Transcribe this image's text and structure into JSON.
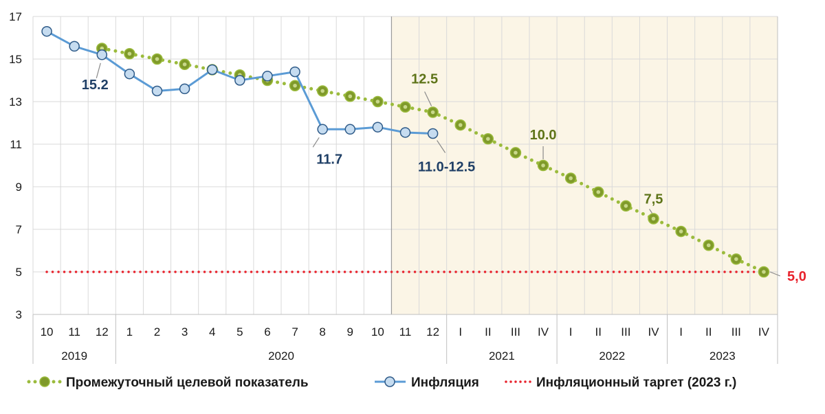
{
  "chart_data": {
    "type": "line",
    "colors": {
      "target_line": "#9bbb3c",
      "target_marker_outer": "#7f9a2a",
      "target_marker_inner": "#5e7418",
      "inflation_line": "#5b9bd5",
      "inflation_marker_fill": "#c6dcf0",
      "inflation_marker_stroke": "#2e5a88",
      "goal_line": "#e8222c",
      "forecast_shade": "#fbf5e6",
      "grid": "#d9d9d9"
    },
    "y_ticks": [
      "3",
      "5",
      "7",
      "9",
      "11",
      "13",
      "15",
      "17"
    ],
    "ylim": [
      3,
      17
    ],
    "grid": true,
    "categories": [
      "10",
      "11",
      "12",
      "1",
      "2",
      "3",
      "4",
      "5",
      "6",
      "7",
      "8",
      "9",
      "10",
      "11",
      "12",
      "I",
      "II",
      "III",
      "IV",
      "I",
      "II",
      "III",
      "IV",
      "I",
      "II",
      "III",
      "IV"
    ],
    "year_groups": [
      {
        "label": "2019",
        "start": 0,
        "end": 2
      },
      {
        "label": "2020",
        "start": 3,
        "end": 14
      },
      {
        "label": "2021",
        "start": 15,
        "end": 18
      },
      {
        "label": "2022",
        "start": 19,
        "end": 22
      },
      {
        "label": "2023",
        "start": 23,
        "end": 26
      }
    ],
    "forecast_start_index": 12.5,
    "series": [
      {
        "name": "Промежуточный целевой показатель",
        "style": "dotted-marker",
        "values": [
          null,
          null,
          15.5,
          15.25,
          15.0,
          14.75,
          14.5,
          14.25,
          14.0,
          13.75,
          13.5,
          13.25,
          13.0,
          12.75,
          12.5,
          11.9,
          11.25,
          10.6,
          10.0,
          9.4,
          8.75,
          8.1,
          7.5,
          6.9,
          6.25,
          5.6,
          5.0
        ]
      },
      {
        "name": "Инфляция",
        "style": "line-marker",
        "values": [
          16.3,
          15.6,
          15.2,
          14.3,
          13.5,
          13.6,
          14.5,
          14.0,
          14.2,
          14.4,
          11.7,
          11.7,
          11.8,
          11.55,
          11.5,
          null,
          null,
          null,
          null,
          null,
          null,
          null,
          null,
          null,
          null,
          null,
          null
        ]
      },
      {
        "name": "Инфляционный таргет (2023 г.)",
        "style": "dotted",
        "constant": 5
      }
    ],
    "annotations": [
      {
        "text": "15.2",
        "index": 2,
        "value": 15.2,
        "color": "#1f3f66"
      },
      {
        "text": "11.7",
        "index": 10,
        "value": 11.7,
        "color": "#1f3f66"
      },
      {
        "text": "11.0-12.5",
        "index": 14,
        "value": 11.5,
        "color": "#1f3f66"
      },
      {
        "text": "12.5",
        "index": 14,
        "value": 12.5,
        "color": "#5e7418"
      },
      {
        "text": "10.0",
        "index": 18,
        "value": 10.0,
        "color": "#5e7418"
      },
      {
        "text": "7,5",
        "index": 22,
        "value": 7.5,
        "color": "#5e7418"
      },
      {
        "text": "5,0",
        "index": 26,
        "value": 5.0,
        "color": "#e8222c"
      }
    ]
  }
}
